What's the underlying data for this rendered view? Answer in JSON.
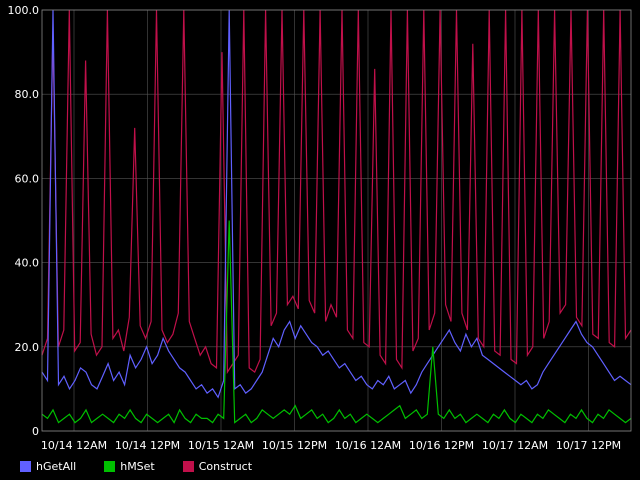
{
  "chart_data": {
    "type": "line",
    "title": "",
    "xlabel": "",
    "ylabel": "",
    "ylim": [
      0,
      100
    ],
    "y_ticks": [
      0,
      20.0,
      40.0,
      60.0,
      80.0,
      100.0
    ],
    "y_tick_labels": [
      "0",
      "20.0",
      "40.0",
      "60.0",
      "80.0",
      "100.0"
    ],
    "x_tick_labels": [
      "10/14 12AM",
      "10/14 12PM",
      "10/15 12AM",
      "10/15 12PM",
      "10/16 12AM",
      "10/16 12PM",
      "10/17 12AM",
      "10/17 12PM"
    ],
    "grid": true,
    "legend_position": "bottom-left",
    "background": "#000000",
    "series": [
      {
        "name": "Construct",
        "color": "#c0104a",
        "values": [
          18,
          22,
          95,
          20,
          24,
          100,
          19,
          21,
          88,
          23,
          18,
          20,
          100,
          22,
          24,
          19,
          27,
          72,
          25,
          22,
          26,
          100,
          24,
          21,
          23,
          28,
          100,
          26,
          22,
          18,
          20,
          16,
          15,
          90,
          14,
          16,
          18,
          100,
          15,
          14,
          17,
          100,
          25,
          28,
          100,
          30,
          32,
          29,
          100,
          31,
          28,
          100,
          26,
          30,
          27,
          100,
          24,
          22,
          100,
          21,
          20,
          86,
          18,
          16,
          100,
          17,
          15,
          100,
          19,
          22,
          100,
          24,
          28,
          100,
          30,
          26,
          100,
          28,
          24,
          92,
          22,
          20,
          100,
          19,
          18,
          100,
          17,
          16,
          100,
          18,
          20,
          100,
          22,
          26,
          100,
          28,
          30,
          100,
          27,
          25,
          100,
          23,
          22,
          100,
          21,
          20,
          100,
          22,
          24
        ]
      },
      {
        "name": "hGetAll",
        "color": "#6060ff",
        "values": [
          14,
          12,
          100,
          11,
          13,
          10,
          12,
          15,
          14,
          11,
          10,
          13,
          16,
          12,
          14,
          11,
          18,
          15,
          17,
          20,
          16,
          18,
          22,
          19,
          17,
          15,
          14,
          12,
          10,
          11,
          9,
          10,
          8,
          12,
          100,
          10,
          11,
          9,
          10,
          12,
          14,
          18,
          22,
          20,
          24,
          26,
          22,
          25,
          23,
          21,
          20,
          18,
          19,
          17,
          15,
          16,
          14,
          12,
          13,
          11,
          10,
          12,
          11,
          13,
          10,
          11,
          12,
          9,
          11,
          14,
          16,
          18,
          20,
          22,
          24,
          21,
          19,
          23,
          20,
          22,
          18,
          17,
          16,
          15,
          14,
          13,
          12,
          11,
          12,
          10,
          11,
          14,
          16,
          18,
          20,
          22,
          24,
          26,
          23,
          21,
          20,
          18,
          16,
          14,
          12,
          13,
          12,
          11
        ]
      },
      {
        "name": "hMSet",
        "color": "#00c000",
        "values": [
          4,
          3,
          5,
          2,
          3,
          4,
          2,
          3,
          5,
          2,
          3,
          4,
          3,
          2,
          4,
          3,
          5,
          3,
          2,
          4,
          3,
          2,
          3,
          4,
          2,
          5,
          3,
          2,
          4,
          3,
          3,
          2,
          4,
          3,
          50,
          2,
          3,
          4,
          2,
          3,
          5,
          4,
          3,
          4,
          5,
          4,
          6,
          3,
          4,
          5,
          3,
          4,
          2,
          3,
          5,
          3,
          4,
          2,
          3,
          4,
          3,
          2,
          3,
          4,
          5,
          6,
          3,
          4,
          5,
          3,
          4,
          20,
          4,
          3,
          5,
          3,
          4,
          2,
          3,
          4,
          3,
          2,
          4,
          3,
          5,
          3,
          2,
          4,
          3,
          2,
          4,
          3,
          5,
          4,
          3,
          2,
          4,
          3,
          5,
          3,
          2,
          4,
          3,
          5,
          4,
          3,
          2,
          3
        ]
      }
    ]
  }
}
